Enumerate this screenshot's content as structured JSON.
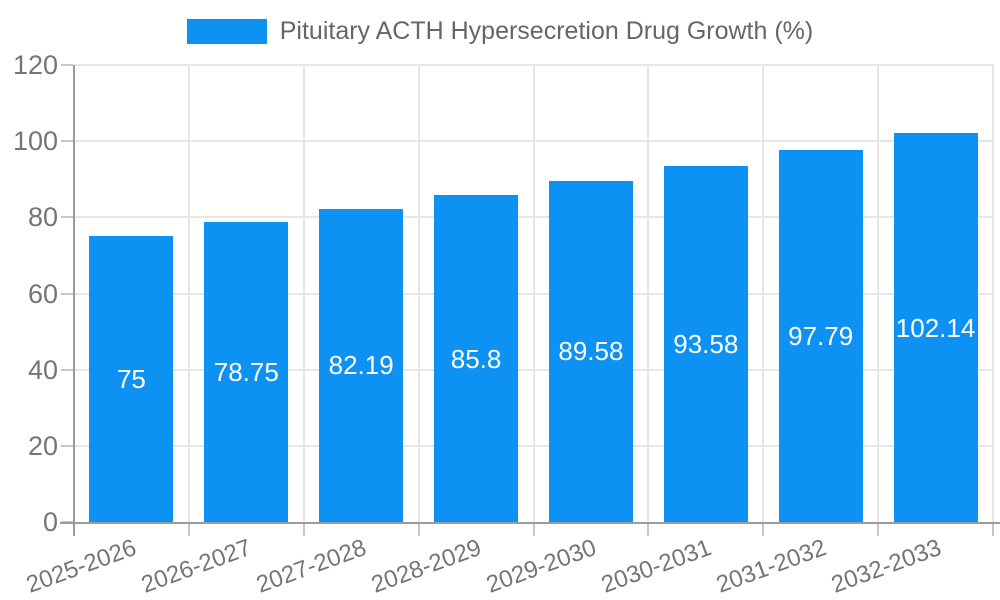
{
  "chart_data": {
    "type": "bar",
    "title": "Pituitary ACTH Hypersecretion Drug Growth (%)",
    "categories": [
      "2025-2026",
      "2026-2027",
      "2027-2028",
      "2028-2029",
      "2029-2030",
      "2030-2031",
      "2031-2032",
      "2032-2033"
    ],
    "series": [
      {
        "name": "Pituitary ACTH Hypersecretion Drug Growth (%)",
        "values": [
          75,
          78.75,
          82.19,
          85.8,
          89.58,
          93.58,
          97.79,
          102.14
        ],
        "data_labels": [
          "75",
          "78.75",
          "82.19",
          "85.8",
          "89.58",
          "93.58",
          "97.79",
          "102.14"
        ]
      }
    ],
    "xlabel": "",
    "ylabel": "",
    "ylim": [
      0,
      120
    ],
    "yticks": [
      0,
      20,
      40,
      60,
      80,
      100,
      120
    ],
    "grid": true,
    "legend_position": "top",
    "x_label_rotation_deg": -20,
    "colors": {
      "bar": "#0d92f4",
      "bar_label_text": "#ffffff",
      "axis_text": "#757575",
      "legend_text": "#666666",
      "gridline": "#e6e6e6",
      "axis_line": "#9b9b9b",
      "tick": "#c7c7c7",
      "background": "#ffffff"
    }
  }
}
